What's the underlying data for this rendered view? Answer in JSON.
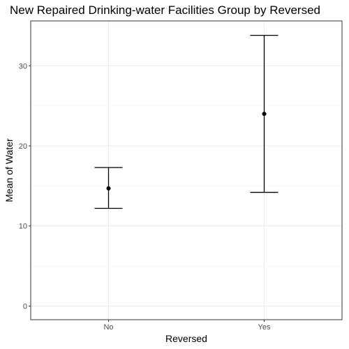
{
  "chart_data": {
    "type": "errorbar",
    "title": "New Repaired Drinking-water Facilities Group by Reversed",
    "xlabel": "Reversed",
    "ylabel": "Mean of Water",
    "categories": [
      "No",
      "Yes"
    ],
    "mean": [
      14.7,
      24.0
    ],
    "lower": [
      12.2,
      14.2
    ],
    "upper": [
      17.3,
      33.8
    ],
    "ylim": [
      -1.7,
      35.6
    ],
    "y_ticks": [
      0,
      10,
      20,
      30
    ],
    "grid": true,
    "colors": {
      "panel_border": "#333333",
      "grid_major": "#ebebeb",
      "grid_minor": "#f5f5f5",
      "marks": "#000000"
    }
  }
}
